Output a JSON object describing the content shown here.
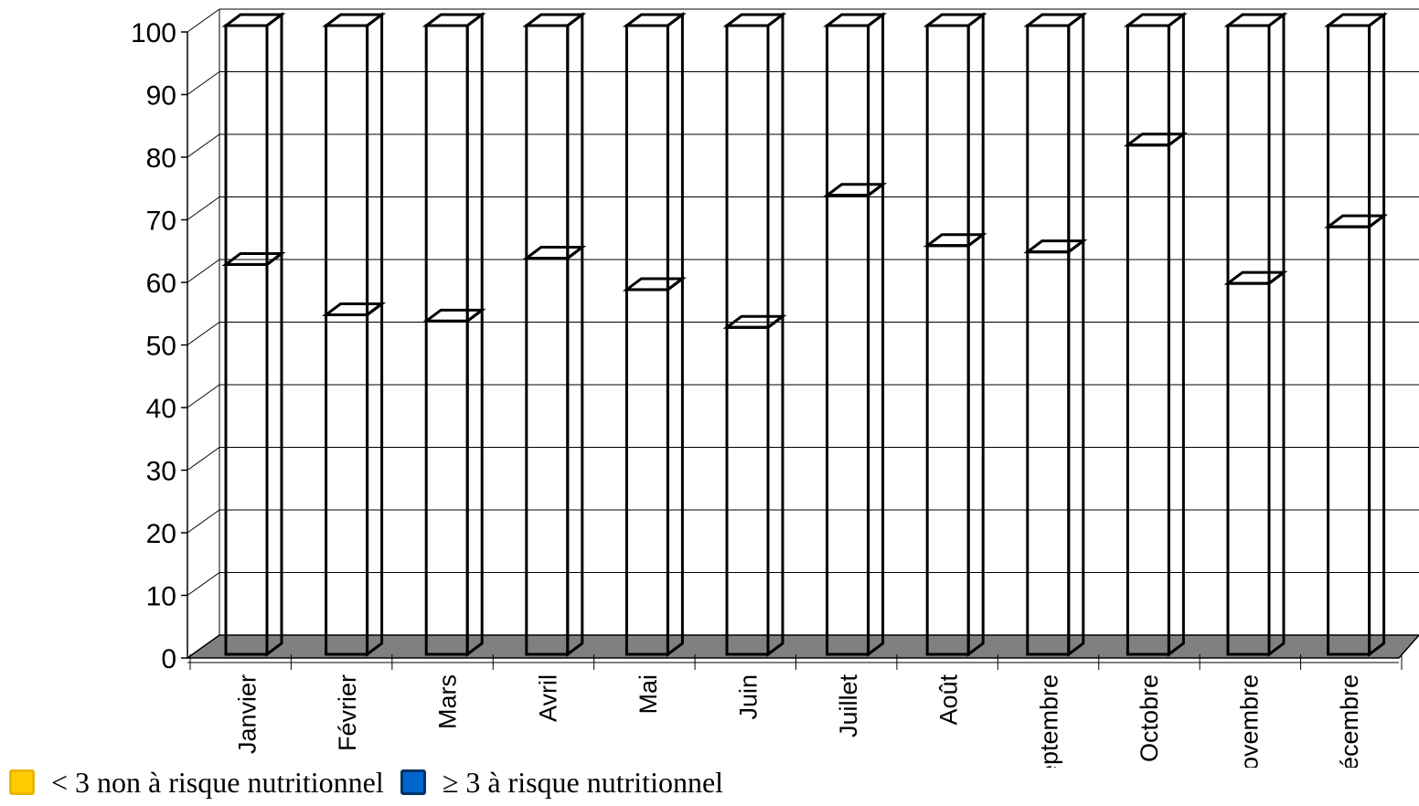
{
  "chart_data": {
    "type": "bar",
    "stacked": true,
    "three_d": true,
    "categories": [
      "Janvier",
      "Février",
      "Mars",
      "Avril",
      "Mai",
      "Juin",
      "Juillet",
      "Août",
      "Septembre",
      "Octobre",
      "Novembre",
      "Décembre"
    ],
    "series": [
      {
        "name": "< 3 non à risque nutritionnel",
        "color": "#FFCC00",
        "border": "#E6B800",
        "values": [
          62,
          54,
          53,
          63,
          58,
          52,
          73,
          65,
          64,
          81,
          59,
          68
        ]
      },
      {
        "name": "≥ 3 à risque nutritionnel",
        "color": "#0066CC",
        "border": "#003366",
        "values": [
          38,
          46,
          47,
          37,
          42,
          48,
          27,
          35,
          36,
          19,
          41,
          32
        ]
      }
    ],
    "ylim": [
      0,
      100
    ],
    "yticks": [
      "0",
      "10",
      "20",
      "30",
      "40",
      "50",
      "60",
      "70",
      "80",
      "90",
      "100"
    ],
    "grid": true,
    "legend_position": "bottom-left",
    "floor_color": "#808080"
  }
}
